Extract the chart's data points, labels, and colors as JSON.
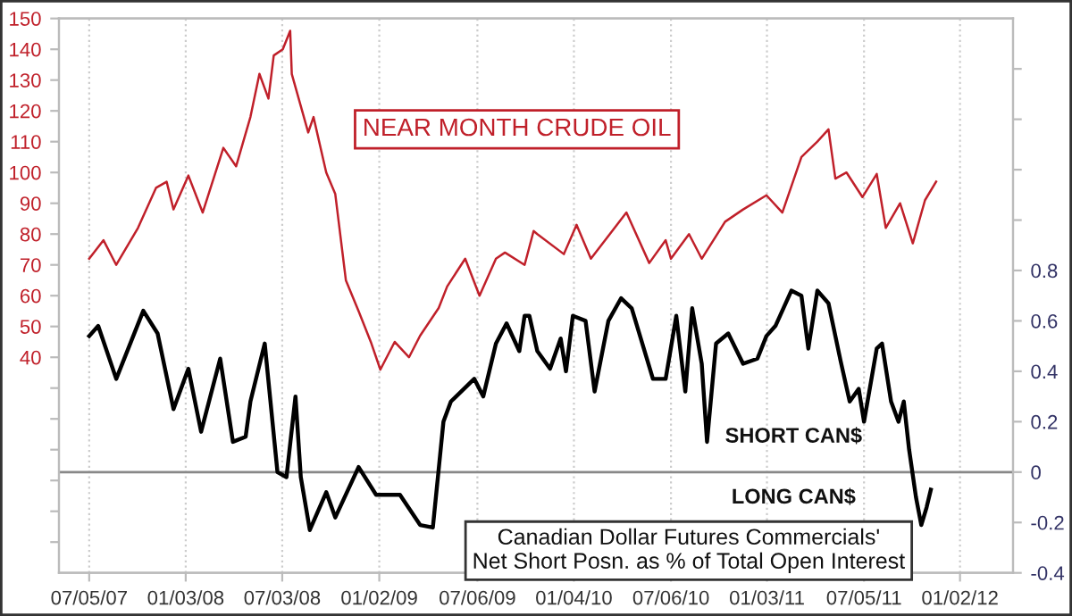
{
  "chart_data": {
    "type": "line",
    "annotations": [
      "NEAR MONTH CRUDE OIL",
      "SHORT CAN$",
      "LONG CAN$",
      "Canadian Dollar Futures Commercials'\nNet Short Posn. as % of Total Open Interest"
    ],
    "series": [
      {
        "color": "#c0202a",
        "axis": "y",
        "x": [
          "2007-07-05",
          "2007-08-01",
          "2007-08-25",
          "2007-10-05",
          "2007-11-08",
          "2007-11-28",
          "2007-12-11",
          "2008-01-08",
          "2008-02-04",
          "2008-03-14",
          "2008-04-07",
          "2008-05-04",
          "2008-05-21",
          "2008-06-07",
          "2008-06-17",
          "2008-07-04",
          "2008-07-18",
          "2008-07-21",
          "2008-08-21",
          "2008-08-31",
          "2008-09-24",
          "2008-10-11",
          "2008-10-31",
          "2008-11-24",
          "2008-12-17",
          "2009-01-04",
          "2009-01-31",
          "2009-02-27",
          "2009-03-20",
          "2009-04-24",
          "2009-05-10",
          "2009-06-13",
          "2009-07-10",
          "2009-08-10",
          "2009-08-27",
          "2009-10-03",
          "2009-10-20",
          "2009-10-27",
          "2009-12-16",
          "2010-01-09",
          "2010-02-05",
          "2010-04-13",
          "2010-05-26",
          "2010-06-26",
          "2010-07-06",
          "2010-08-09",
          "2010-09-02",
          "2010-10-16",
          "2010-11-19",
          "2011-01-02",
          "2011-02-01",
          "2011-03-09",
          "2011-04-08",
          "2011-04-29",
          "2011-05-12",
          "2011-06-02",
          "2011-07-02",
          "2011-07-29",
          "2011-08-15",
          "2011-09-11",
          "2011-10-05",
          "2011-10-28",
          "2011-11-18"
        ],
        "values": [
          72,
          78,
          70,
          82,
          95,
          97,
          88,
          99,
          87,
          108,
          102,
          118,
          132,
          124,
          138,
          140,
          146,
          132,
          113,
          118,
          100,
          93,
          65,
          55,
          45,
          36,
          45,
          40,
          47,
          56,
          63,
          72,
          60,
          72,
          74,
          70,
          81,
          80,
          73.5,
          83,
          72,
          87,
          70.6,
          78,
          72,
          80,
          72,
          84,
          88,
          92.6,
          87,
          105,
          110,
          114,
          98,
          100,
          92,
          99.5,
          82,
          90,
          77,
          91,
          97
        ]
      },
      {
        "color": "#000000",
        "axis": "y2",
        "x": [
          "2007-07-05",
          "2007-07-22",
          "2007-08-25",
          "2007-10-15",
          "2007-11-11",
          "2007-12-11",
          "2008-01-08",
          "2008-02-01",
          "2008-03-08",
          "2008-04-01",
          "2008-04-25",
          "2008-05-04",
          "2008-05-31",
          "2008-06-24",
          "2008-07-11",
          "2008-07-28",
          "2008-08-07",
          "2008-08-24",
          "2008-09-24",
          "2008-10-11",
          "2008-11-24",
          "2008-12-27",
          "2009-02-10",
          "2009-03-20",
          "2009-04-13",
          "2009-05-03",
          "2009-05-17",
          "2009-06-30",
          "2009-07-17",
          "2009-08-10",
          "2009-08-30",
          "2009-09-23",
          "2009-10-03",
          "2009-10-12",
          "2009-10-27",
          "2009-11-20",
          "2009-12-10",
          "2009-12-20",
          "2010-01-02",
          "2010-01-26",
          "2010-02-12",
          "2010-03-10",
          "2010-04-03",
          "2010-04-23",
          "2010-06-02",
          "2010-06-26",
          "2010-07-16",
          "2010-08-02",
          "2010-08-15",
          "2010-09-02",
          "2010-09-12",
          "2010-09-29",
          "2010-10-22",
          "2010-11-19",
          "2010-12-16",
          "2011-01-02",
          "2011-01-19",
          "2011-02-18",
          "2011-03-09",
          "2011-03-22",
          "2011-04-08",
          "2011-04-29",
          "2011-05-22",
          "2011-06-08",
          "2011-06-25",
          "2011-07-05",
          "2011-07-29",
          "2011-08-08",
          "2011-08-25",
          "2011-09-08",
          "2011-09-18",
          "2011-09-28",
          "2011-10-11",
          "2011-10-21",
          "2011-10-31",
          "2011-11-08"
        ],
        "values": [
          0.54,
          0.58,
          0.37,
          0.64,
          0.55,
          0.25,
          0.41,
          0.16,
          0.45,
          0.12,
          0.14,
          0.28,
          0.51,
          0.0,
          -0.02,
          0.3,
          -0.02,
          -0.23,
          -0.08,
          -0.18,
          0.02,
          -0.09,
          -0.09,
          -0.21,
          -0.22,
          0.2,
          0.28,
          0.37,
          0.3,
          0.51,
          0.59,
          0.48,
          0.62,
          0.62,
          0.48,
          0.41,
          0.53,
          0.4,
          0.62,
          0.6,
          0.32,
          0.6,
          0.69,
          0.65,
          0.37,
          0.37,
          0.62,
          0.32,
          0.65,
          0.43,
          0.12,
          0.51,
          0.55,
          0.43,
          0.45,
          0.54,
          0.58,
          0.72,
          0.7,
          0.49,
          0.72,
          0.67,
          0.44,
          0.28,
          0.33,
          0.2,
          0.49,
          0.51,
          0.28,
          0.2,
          0.28,
          0.09,
          -0.1,
          -0.21,
          -0.14,
          -0.07
        ]
      }
    ],
    "xlim": [
      "2007-05-09",
      "2012-04-11"
    ],
    "xticks": [
      {
        "value": "2007-07-05",
        "label": "07/05/07"
      },
      {
        "value": "2008-01-03",
        "label": "01/03/08"
      },
      {
        "value": "2008-07-03",
        "label": "07/03/08"
      },
      {
        "value": "2009-01-02",
        "label": "01/02/09"
      },
      {
        "value": "2009-07-06",
        "label": "07/06/09"
      },
      {
        "value": "2010-01-04",
        "label": "01/04/10"
      },
      {
        "value": "2010-07-06",
        "label": "07/06/10"
      },
      {
        "value": "2011-01-03",
        "label": "01/03/11"
      },
      {
        "value": "2011-07-05",
        "label": "07/05/11"
      },
      {
        "value": "2012-01-02",
        "label": "01/02/12"
      }
    ],
    "ylim": [
      -30,
      150
    ],
    "yticks": [
      {
        "value": -20,
        "label": null
      },
      {
        "value": -10,
        "label": null
      },
      {
        "value": 0,
        "label": null
      },
      {
        "value": 10,
        "label": null
      },
      {
        "value": 20,
        "label": null
      },
      {
        "value": 30,
        "label": null
      },
      40,
      50,
      60,
      70,
      80,
      90,
      100,
      110,
      120,
      130,
      140,
      150
    ],
    "y2lim": [
      -0.4,
      1.8
    ],
    "y2ticks": [
      -0.4,
      -0.2,
      0,
      0.2,
      0.4,
      0.6,
      0.8,
      {
        "value": 1.0,
        "label": null
      },
      {
        "value": 1.2,
        "label": null
      },
      {
        "value": 1.4,
        "label": null
      },
      {
        "value": 1.6,
        "label": null
      }
    ],
    "ref_lines": [
      {
        "axis": "y2",
        "value": 0,
        "color": "#888888"
      }
    ],
    "grid": "x"
  }
}
